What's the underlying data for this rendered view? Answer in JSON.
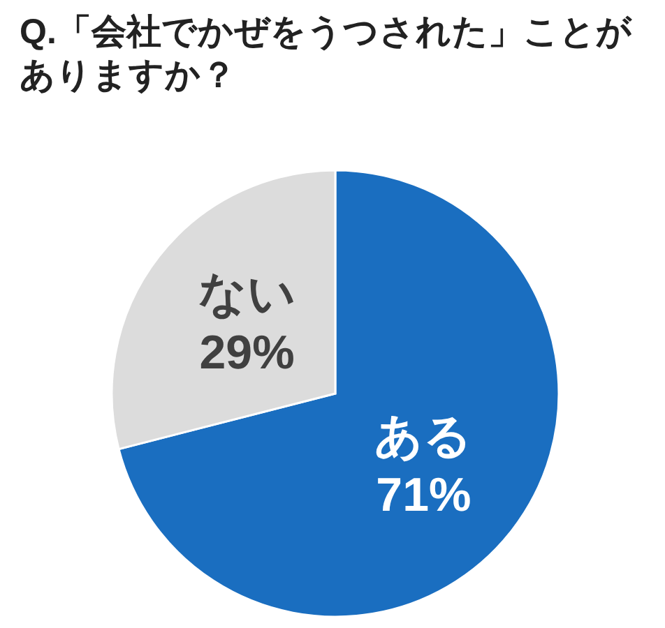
{
  "chart_data": {
    "type": "pie",
    "title": "Q.「会社でかぜをうつされた」ことがありますか？",
    "categories": [
      "ある",
      "ない"
    ],
    "values": [
      71,
      29
    ],
    "colors": [
      "#1a6ec0",
      "#dcdcdc"
    ],
    "value_labels": [
      "71%",
      "29%"
    ]
  }
}
